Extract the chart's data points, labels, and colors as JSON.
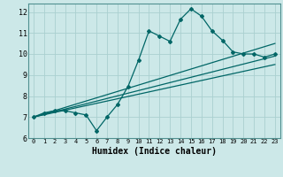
{
  "xlabel": "Humidex (Indice chaleur)",
  "bg_color": "#cce8e8",
  "grid_color": "#aad0d0",
  "line_color": "#006666",
  "xlim": [
    -0.5,
    23.5
  ],
  "ylim": [
    6,
    12.4
  ],
  "yticks": [
    6,
    7,
    8,
    9,
    10,
    11,
    12
  ],
  "xticks": [
    0,
    1,
    2,
    3,
    4,
    5,
    6,
    7,
    8,
    9,
    10,
    11,
    12,
    13,
    14,
    15,
    16,
    17,
    18,
    19,
    20,
    21,
    22,
    23
  ],
  "series": [
    {
      "x": [
        0,
        1,
        2,
        3,
        4,
        5,
        6,
        7,
        8,
        9,
        10,
        11,
        12,
        13,
        14,
        15,
        16,
        17,
        18,
        19,
        20,
        21,
        22,
        23
      ],
      "y": [
        7.0,
        7.2,
        7.3,
        7.3,
        7.2,
        7.1,
        6.35,
        7.0,
        7.6,
        8.45,
        9.7,
        11.1,
        10.85,
        10.6,
        11.65,
        12.15,
        11.8,
        11.1,
        10.65,
        10.1,
        10.0,
        10.0,
        9.85,
        10.0
      ],
      "marker": true
    },
    {
      "x": [
        0,
        23
      ],
      "y": [
        7.0,
        10.5
      ],
      "marker": false
    },
    {
      "x": [
        0,
        23
      ],
      "y": [
        7.0,
        9.9
      ],
      "marker": false
    },
    {
      "x": [
        0,
        23
      ],
      "y": [
        7.0,
        9.5
      ],
      "marker": false
    }
  ]
}
